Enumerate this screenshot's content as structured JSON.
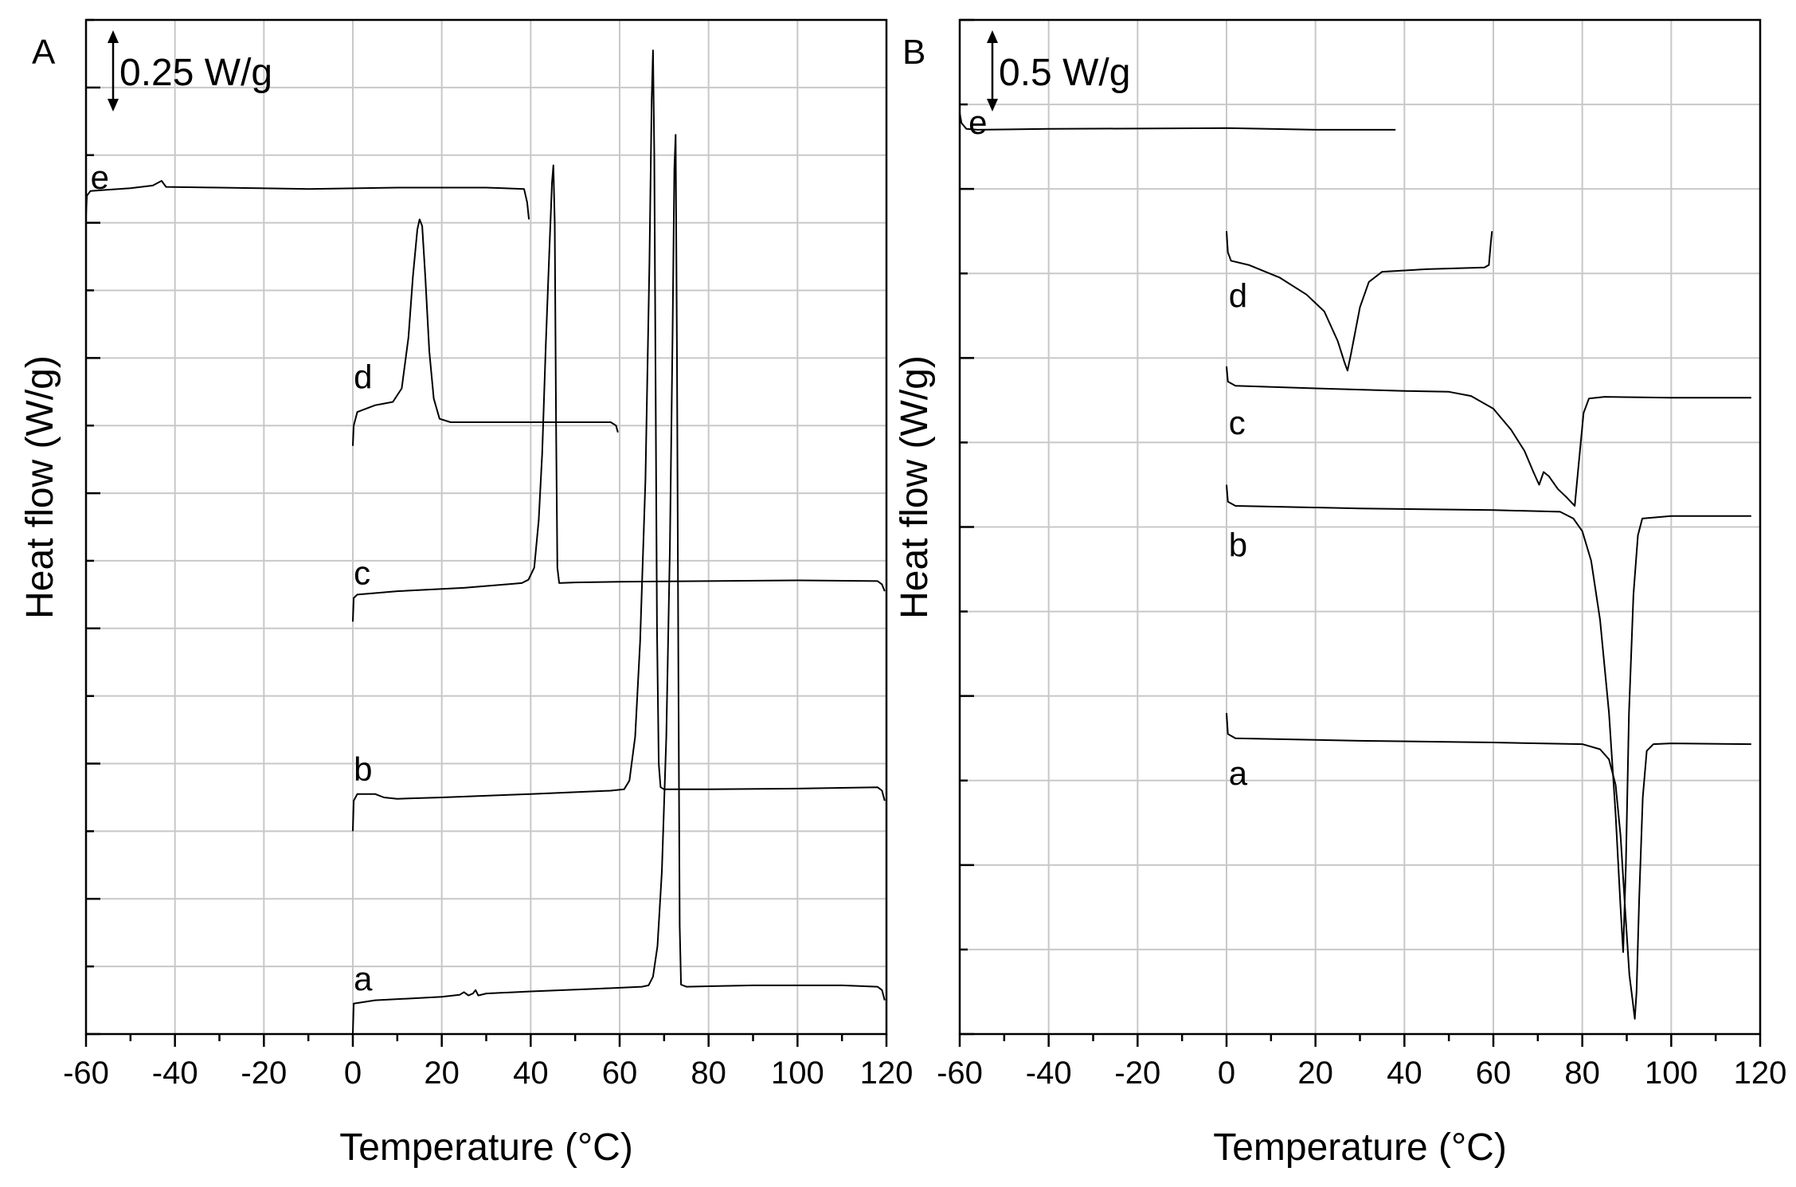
{
  "chart_data": [
    {
      "type": "line",
      "panel_label": "A",
      "xlabel": "Temperature (°C)",
      "ylabel": "Heat flow (W/g)",
      "xlim": [
        -60,
        120
      ],
      "xticks": [
        -60,
        -40,
        -20,
        0,
        20,
        40,
        60,
        80,
        100,
        120
      ],
      "ylim": [
        0,
        15
      ],
      "yticks_labeled": false,
      "grid": true,
      "scale_bar": {
        "label": "0.25 W/g",
        "value": 0.25
      },
      "series": [
        {
          "name": "e",
          "label_at": [
            -59,
            12.5
          ],
          "points": [
            [
              -60,
              12.1
            ],
            [
              -59.8,
              12.4
            ],
            [
              -59,
              12.47
            ],
            [
              -50,
              12.51
            ],
            [
              -45,
              12.55
            ],
            [
              -43,
              12.62
            ],
            [
              -42,
              12.53
            ],
            [
              -30,
              12.52
            ],
            [
              -10,
              12.5
            ],
            [
              10,
              12.52
            ],
            [
              30,
              12.52
            ],
            [
              38.5,
              12.5
            ],
            [
              39.2,
              12.3
            ],
            [
              39.6,
              12.05
            ]
          ]
        },
        {
          "name": "d",
          "label_at": [
            0.2,
            9.55
          ],
          "points": [
            [
              0,
              8.7
            ],
            [
              0.2,
              9.0
            ],
            [
              1,
              9.2
            ],
            [
              5,
              9.3
            ],
            [
              9,
              9.35
            ],
            [
              11,
              9.55
            ],
            [
              12.5,
              10.3
            ],
            [
              13.5,
              11.2
            ],
            [
              14.5,
              11.9
            ],
            [
              15,
              12.05
            ],
            [
              15.6,
              11.95
            ],
            [
              16.3,
              11.2
            ],
            [
              17.2,
              10.1
            ],
            [
              18.2,
              9.4
            ],
            [
              19.5,
              9.1
            ],
            [
              22,
              9.05
            ],
            [
              30,
              9.05
            ],
            [
              45,
              9.05
            ],
            [
              58,
              9.05
            ],
            [
              59.2,
              9.0
            ],
            [
              59.6,
              8.9
            ]
          ]
        },
        {
          "name": "c",
          "label_at": [
            0.2,
            6.65
          ],
          "points": [
            [
              0,
              6.1
            ],
            [
              0.2,
              6.45
            ],
            [
              1,
              6.5
            ],
            [
              10,
              6.55
            ],
            [
              25,
              6.6
            ],
            [
              38,
              6.67
            ],
            [
              39.5,
              6.72
            ],
            [
              40.8,
              6.9
            ],
            [
              41.8,
              7.6
            ],
            [
              42.6,
              8.6
            ],
            [
              43.4,
              10.2
            ],
            [
              44.2,
              11.6
            ],
            [
              44.8,
              12.6
            ],
            [
              45.1,
              12.85
            ],
            [
              45.4,
              12.0
            ],
            [
              45.7,
              9.0
            ],
            [
              46,
              6.9
            ],
            [
              46.4,
              6.67
            ],
            [
              50,
              6.68
            ],
            [
              60,
              6.69
            ],
            [
              80,
              6.7
            ],
            [
              100,
              6.71
            ],
            [
              118,
              6.7
            ],
            [
              119,
              6.65
            ],
            [
              119.6,
              6.55
            ]
          ]
        },
        {
          "name": "b",
          "label_at": [
            0.2,
            3.75
          ],
          "points": [
            [
              0,
              3.0
            ],
            [
              0.2,
              3.45
            ],
            [
              1,
              3.55
            ],
            [
              5,
              3.55
            ],
            [
              7,
              3.5
            ],
            [
              10,
              3.48
            ],
            [
              20,
              3.5
            ],
            [
              40,
              3.55
            ],
            [
              58,
              3.6
            ],
            [
              61,
              3.62
            ],
            [
              62.2,
              3.75
            ],
            [
              63.5,
              4.4
            ],
            [
              64.6,
              5.8
            ],
            [
              65.8,
              8.2
            ],
            [
              66.7,
              11.4
            ],
            [
              67.2,
              13.8
            ],
            [
              67.5,
              14.55
            ],
            [
              67.8,
              13.0
            ],
            [
              68.1,
              9.5
            ],
            [
              68.4,
              6.0
            ],
            [
              68.8,
              4.0
            ],
            [
              69.2,
              3.65
            ],
            [
              70,
              3.62
            ],
            [
              80,
              3.62
            ],
            [
              100,
              3.63
            ],
            [
              118,
              3.65
            ],
            [
              119,
              3.6
            ],
            [
              119.6,
              3.45
            ]
          ]
        },
        {
          "name": "a",
          "label_at": [
            0.2,
            0.65
          ],
          "points": [
            [
              0,
              0
            ],
            [
              0.2,
              0.45
            ],
            [
              5,
              0.5
            ],
            [
              20,
              0.55
            ],
            [
              24,
              0.58
            ],
            [
              25,
              0.62
            ],
            [
              26,
              0.57
            ],
            [
              27,
              0.6
            ],
            [
              27.6,
              0.65
            ],
            [
              28.2,
              0.57
            ],
            [
              30,
              0.6
            ],
            [
              40,
              0.63
            ],
            [
              55,
              0.67
            ],
            [
              65,
              0.7
            ],
            [
              66.5,
              0.72
            ],
            [
              67.5,
              0.85
            ],
            [
              68.5,
              1.3
            ],
            [
              69.5,
              2.4
            ],
            [
              70.5,
              4.4
            ],
            [
              71.3,
              7.2
            ],
            [
              71.9,
              10.3
            ],
            [
              72.3,
              12.8
            ],
            [
              72.6,
              13.3
            ],
            [
              72.9,
              10.0
            ],
            [
              73.2,
              5.5
            ],
            [
              73.5,
              1.6
            ],
            [
              73.8,
              0.73
            ],
            [
              75,
              0.7
            ],
            [
              90,
              0.72
            ],
            [
              110,
              0.72
            ],
            [
              118,
              0.7
            ],
            [
              119,
              0.65
            ],
            [
              119.6,
              0.5
            ]
          ]
        }
      ]
    },
    {
      "type": "line",
      "panel_label": "B",
      "xlabel": "Temperature (°C)",
      "ylabel": "Heat flow (W/g)",
      "xlim": [
        -60,
        120
      ],
      "xticks": [
        -60,
        -40,
        -20,
        0,
        20,
        40,
        60,
        80,
        100,
        120
      ],
      "ylim": [
        0,
        12
      ],
      "yticks_labeled": false,
      "grid": true,
      "scale_bar": {
        "label": "0.5 W/g",
        "value": 0.5
      },
      "series": [
        {
          "name": "e",
          "label_at": [
            -58,
            10.65
          ],
          "points": [
            [
              -60,
              10.9
            ],
            [
              -59.6,
              10.78
            ],
            [
              -58.5,
              10.71
            ],
            [
              -56,
              10.7
            ],
            [
              -40,
              10.71
            ],
            [
              0,
              10.72
            ],
            [
              20,
              10.7
            ],
            [
              38,
              10.7
            ]
          ]
        },
        {
          "name": "d",
          "label_at": [
            0.5,
            8.6
          ],
          "points": [
            [
              0,
              9.5
            ],
            [
              0.3,
              9.25
            ],
            [
              1,
              9.15
            ],
            [
              5,
              9.1
            ],
            [
              12,
              8.95
            ],
            [
              18,
              8.75
            ],
            [
              22,
              8.55
            ],
            [
              25,
              8.2
            ],
            [
              26.5,
              7.95
            ],
            [
              27.2,
              7.85
            ],
            [
              28,
              8.05
            ],
            [
              30,
              8.6
            ],
            [
              32,
              8.9
            ],
            [
              35,
              9.02
            ],
            [
              45,
              9.05
            ],
            [
              58,
              9.07
            ],
            [
              59,
              9.1
            ],
            [
              59.4,
              9.35
            ],
            [
              59.7,
              9.5
            ]
          ]
        },
        {
          "name": "c",
          "label_at": [
            0.5,
            7.1
          ],
          "points": [
            [
              0,
              7.9
            ],
            [
              0.3,
              7.72
            ],
            [
              2,
              7.67
            ],
            [
              20,
              7.64
            ],
            [
              40,
              7.61
            ],
            [
              50,
              7.6
            ],
            [
              55,
              7.55
            ],
            [
              60,
              7.4
            ],
            [
              64,
              7.15
            ],
            [
              67,
              6.9
            ],
            [
              69,
              6.65
            ],
            [
              70.3,
              6.5
            ],
            [
              71.3,
              6.65
            ],
            [
              72.5,
              6.6
            ],
            [
              74.5,
              6.45
            ],
            [
              76.5,
              6.35
            ],
            [
              78.3,
              6.25
            ],
            [
              79.2,
              6.75
            ],
            [
              80.3,
              7.35
            ],
            [
              81.5,
              7.52
            ],
            [
              85,
              7.54
            ],
            [
              100,
              7.53
            ],
            [
              118,
              7.53
            ]
          ]
        },
        {
          "name": "b",
          "label_at": [
            0.5,
            5.65
          ],
          "points": [
            [
              0,
              6.5
            ],
            [
              0.3,
              6.3
            ],
            [
              2,
              6.25
            ],
            [
              30,
              6.22
            ],
            [
              60,
              6.2
            ],
            [
              75,
              6.18
            ],
            [
              78,
              6.1
            ],
            [
              80,
              5.95
            ],
            [
              82,
              5.6
            ],
            [
              84,
              4.9
            ],
            [
              86,
              3.8
            ],
            [
              87.5,
              2.6
            ],
            [
              88.6,
              1.5
            ],
            [
              89.2,
              0.97
            ],
            [
              89.8,
              2.0
            ],
            [
              90.5,
              3.8
            ],
            [
              91.5,
              5.2
            ],
            [
              92.5,
              5.9
            ],
            [
              93.5,
              6.1
            ],
            [
              100,
              6.13
            ],
            [
              118,
              6.13
            ]
          ]
        },
        {
          "name": "a",
          "label_at": [
            0.5,
            2.95
          ],
          "points": [
            [
              0,
              3.8
            ],
            [
              0.3,
              3.55
            ],
            [
              2,
              3.5
            ],
            [
              30,
              3.47
            ],
            [
              60,
              3.45
            ],
            [
              80,
              3.43
            ],
            [
              84,
              3.37
            ],
            [
              86,
              3.25
            ],
            [
              87.5,
              2.95
            ],
            [
              88.6,
              2.35
            ],
            [
              89.6,
              1.5
            ],
            [
              90.6,
              0.7
            ],
            [
              91.3,
              0.4
            ],
            [
              91.8,
              0.18
            ],
            [
              92.2,
              0.5
            ],
            [
              92.8,
              1.6
            ],
            [
              93.6,
              2.8
            ],
            [
              94.5,
              3.35
            ],
            [
              96,
              3.43
            ],
            [
              100,
              3.44
            ],
            [
              118,
              3.43
            ]
          ]
        }
      ]
    }
  ]
}
